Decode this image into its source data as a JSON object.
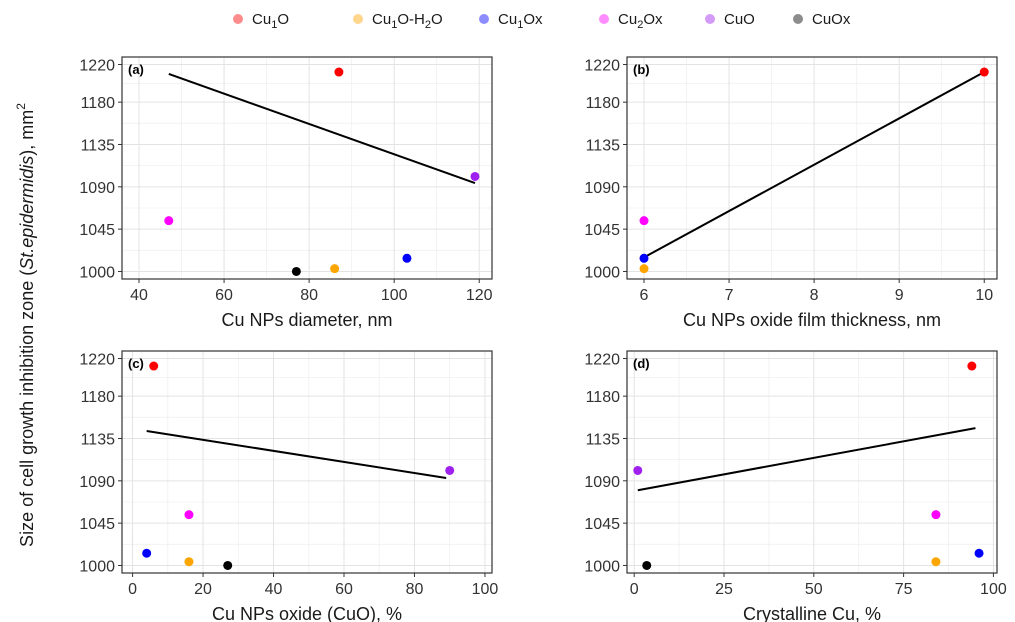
{
  "legend": {
    "position": "top",
    "items": [
      {
        "key": "Cu1O",
        "base": "Cu",
        "sub": "1",
        "rest": "O",
        "color": "#ff0000"
      },
      {
        "key": "Cu1O-H2O",
        "base": "Cu",
        "sub": "1",
        "rest": "O-H",
        "sub2": "2",
        "rest2": "O",
        "color": "#ffa500"
      },
      {
        "key": "Cu1Ox",
        "base": "Cu",
        "sub": "1",
        "rest": "Ox",
        "color": "#0000ff"
      },
      {
        "key": "Cu2Ox",
        "base": "Cu",
        "sub": "2",
        "rest": "Ox",
        "color": "#ff00ff"
      },
      {
        "key": "CuO",
        "base": "CuO",
        "sub": "",
        "rest": "",
        "color": "#a020f0"
      },
      {
        "key": "CuOx",
        "base": "CuOx",
        "sub": "",
        "rest": "",
        "color": "#000000"
      }
    ]
  },
  "shared_ylabel": {
    "prefix": "Size of cell growth inhibition zone (",
    "italic": "St.epidermidis",
    "suffix": "), mm",
    "sup": "2"
  },
  "chart_data": [
    {
      "type": "scatter",
      "panel": "(a)",
      "xlabel": "Cu NPs diameter, nm",
      "xlim": [
        36,
        123
      ],
      "ylim": [
        992,
        1228
      ],
      "xticks": [
        40,
        60,
        80,
        100,
        120
      ],
      "yticks": [
        1000,
        1045,
        1090,
        1135,
        1180,
        1220
      ],
      "grid": true,
      "points": [
        {
          "series": "Cu1O",
          "x": 87,
          "y": 1212
        },
        {
          "series": "Cu1O-H2O",
          "x": 86,
          "y": 1003
        },
        {
          "series": "Cu1Ox",
          "x": 103,
          "y": 1014
        },
        {
          "series": "Cu2Ox",
          "x": 47,
          "y": 1054
        },
        {
          "series": "CuO",
          "x": 119,
          "y": 1101
        },
        {
          "series": "CuOx",
          "x": 77,
          "y": 1000
        }
      ],
      "trend": [
        [
          47,
          1210
        ],
        [
          119,
          1094
        ]
      ]
    },
    {
      "type": "scatter",
      "panel": "(b)",
      "xlabel": "Cu NPs oxide film thickness, nm",
      "xlim": [
        5.8,
        10.15
      ],
      "ylim": [
        992,
        1228
      ],
      "xticks": [
        6,
        7,
        8,
        9,
        10
      ],
      "yticks": [
        1000,
        1045,
        1090,
        1135,
        1180,
        1220
      ],
      "grid": true,
      "points": [
        {
          "series": "Cu1O",
          "x": 10,
          "y": 1212
        },
        {
          "series": "Cu1O-H2O",
          "x": 6,
          "y": 1003
        },
        {
          "series": "Cu1Ox",
          "x": 6,
          "y": 1014
        },
        {
          "series": "Cu2Ox",
          "x": 6,
          "y": 1054
        }
      ],
      "trend": [
        [
          6,
          1015
        ],
        [
          10,
          1212
        ]
      ]
    },
    {
      "type": "scatter",
      "panel": "(c)",
      "xlabel": "Cu NPs oxide (CuO), %",
      "xlim": [
        -3,
        102
      ],
      "ylim": [
        992,
        1228
      ],
      "xticks": [
        0,
        20,
        40,
        60,
        80,
        100
      ],
      "yticks": [
        1000,
        1045,
        1090,
        1135,
        1180,
        1220
      ],
      "grid": true,
      "points": [
        {
          "series": "Cu1O",
          "x": 6,
          "y": 1212
        },
        {
          "series": "Cu1O-H2O",
          "x": 16,
          "y": 1004
        },
        {
          "series": "Cu1Ox",
          "x": 4,
          "y": 1013
        },
        {
          "series": "Cu2Ox",
          "x": 16,
          "y": 1054
        },
        {
          "series": "CuO",
          "x": 90,
          "y": 1101
        },
        {
          "series": "CuOx",
          "x": 27,
          "y": 1000
        }
      ],
      "trend": [
        [
          4,
          1143
        ],
        [
          89,
          1093
        ]
      ]
    },
    {
      "type": "scatter",
      "panel": "(d)",
      "xlabel": "Crystalline Cu, %",
      "xlim": [
        -2,
        101
      ],
      "ylim": [
        992,
        1228
      ],
      "xticks": [
        0,
        25,
        50,
        75,
        100
      ],
      "yticks": [
        1000,
        1045,
        1090,
        1135,
        1180,
        1220
      ],
      "grid": true,
      "points": [
        {
          "series": "Cu1O",
          "x": 94,
          "y": 1212
        },
        {
          "series": "Cu1O-H2O",
          "x": 84,
          "y": 1004
        },
        {
          "series": "Cu1Ox",
          "x": 96,
          "y": 1013
        },
        {
          "series": "Cu2Ox",
          "x": 84,
          "y": 1054
        },
        {
          "series": "CuO",
          "x": 1,
          "y": 1101
        },
        {
          "series": "CuOx",
          "x": 3.5,
          "y": 1000
        }
      ],
      "trend": [
        [
          1,
          1080
        ],
        [
          95,
          1146
        ]
      ]
    }
  ]
}
